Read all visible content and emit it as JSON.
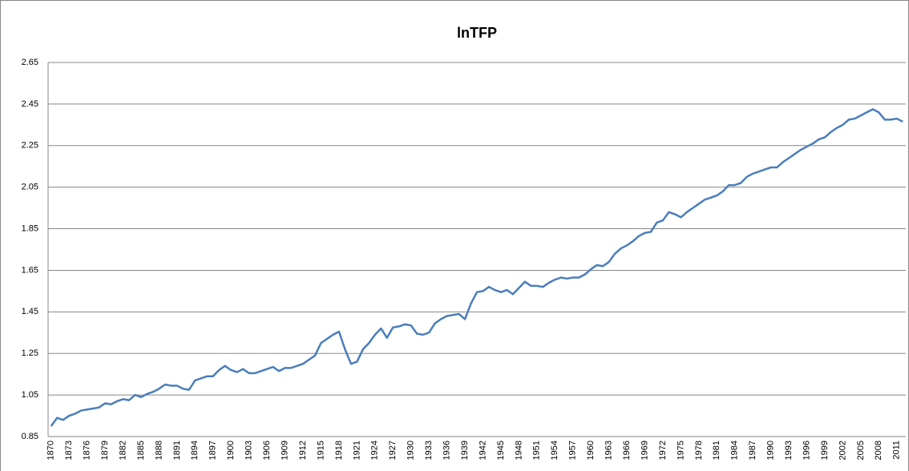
{
  "chart_data": {
    "type": "line",
    "title": "lnTFP",
    "categories": [
      "1870",
      null,
      null,
      "1873",
      null,
      null,
      "1876",
      null,
      null,
      "1879",
      null,
      null,
      "1882",
      null,
      null,
      "1885",
      null,
      null,
      "1888",
      null,
      null,
      "1891",
      null,
      null,
      "1894",
      null,
      null,
      "1897",
      null,
      null,
      "1900",
      null,
      null,
      "1903",
      null,
      null,
      "1906",
      null,
      null,
      "1909",
      null,
      null,
      "1912",
      null,
      null,
      "1915",
      null,
      null,
      "1918",
      null,
      null,
      "1921",
      null,
      null,
      "1924",
      null,
      null,
      "1927",
      null,
      null,
      "1930",
      null,
      null,
      "1933",
      null,
      null,
      "1936",
      null,
      null,
      "1939",
      null,
      null,
      "1942",
      null,
      null,
      "1945",
      null,
      null,
      "1948",
      null,
      null,
      "1951",
      null,
      null,
      "1954",
      null,
      null,
      "1957",
      null,
      null,
      "1960",
      null,
      null,
      "1963",
      null,
      null,
      "1966",
      null,
      null,
      "1969",
      null,
      null,
      "1972",
      null,
      null,
      "1975",
      null,
      null,
      "1978",
      null,
      null,
      "1981",
      null,
      null,
      "1984",
      null,
      null,
      "1987",
      null,
      null,
      "1990",
      null,
      null,
      "1993",
      null,
      null,
      "1996",
      null,
      null,
      "1999",
      null,
      null,
      "2002",
      null,
      null,
      "2005",
      null,
      null,
      "2008",
      null,
      null,
      "2011",
      null
    ],
    "series": [
      {
        "name": "lnTFP",
        "color": "#4a7ebb",
        "values": [
          0.9,
          0.94,
          0.93,
          0.95,
          0.96,
          0.975,
          0.98,
          0.985,
          0.99,
          1.01,
          1.005,
          1.02,
          1.03,
          1.025,
          1.05,
          1.04,
          1.055,
          1.065,
          1.08,
          1.1,
          1.095,
          1.095,
          1.08,
          1.075,
          1.12,
          1.13,
          1.14,
          1.14,
          1.17,
          1.19,
          1.17,
          1.16,
          1.175,
          1.155,
          1.155,
          1.165,
          1.175,
          1.185,
          1.165,
          1.18,
          1.18,
          1.19,
          1.2,
          1.22,
          1.24,
          1.3,
          1.32,
          1.34,
          1.355,
          1.27,
          1.2,
          1.21,
          1.27,
          1.3,
          1.34,
          1.37,
          1.325,
          1.375,
          1.38,
          1.39,
          1.385,
          1.345,
          1.34,
          1.35,
          1.395,
          1.415,
          1.43,
          1.435,
          1.44,
          1.415,
          1.49,
          1.545,
          1.55,
          1.57,
          1.555,
          1.545,
          1.555,
          1.535,
          1.565,
          1.595,
          1.575,
          1.575,
          1.57,
          1.59,
          1.605,
          1.615,
          1.61,
          1.615,
          1.615,
          1.63,
          1.655,
          1.675,
          1.67,
          1.69,
          1.73,
          1.755,
          1.77,
          1.79,
          1.815,
          1.83,
          1.835,
          1.88,
          1.89,
          1.93,
          1.92,
          1.905,
          1.93,
          1.95,
          1.97,
          1.99,
          2.0,
          2.01,
          2.03,
          2.06,
          2.06,
          2.07,
          2.1,
          2.115,
          2.125,
          2.135,
          2.145,
          2.145,
          2.17,
          2.19,
          2.21,
          2.23,
          2.245,
          2.26,
          2.28,
          2.29,
          2.315,
          2.335,
          2.35,
          2.375,
          2.38,
          2.395,
          2.41,
          2.425,
          2.41,
          2.375,
          2.375,
          2.38,
          2.365
        ]
      }
    ],
    "ylim": [
      0.85,
      2.65
    ],
    "yticks": [
      0.85,
      1.05,
      1.25,
      1.45,
      1.65,
      1.85,
      2.05,
      2.25,
      2.45,
      2.65
    ],
    "grid": true
  }
}
